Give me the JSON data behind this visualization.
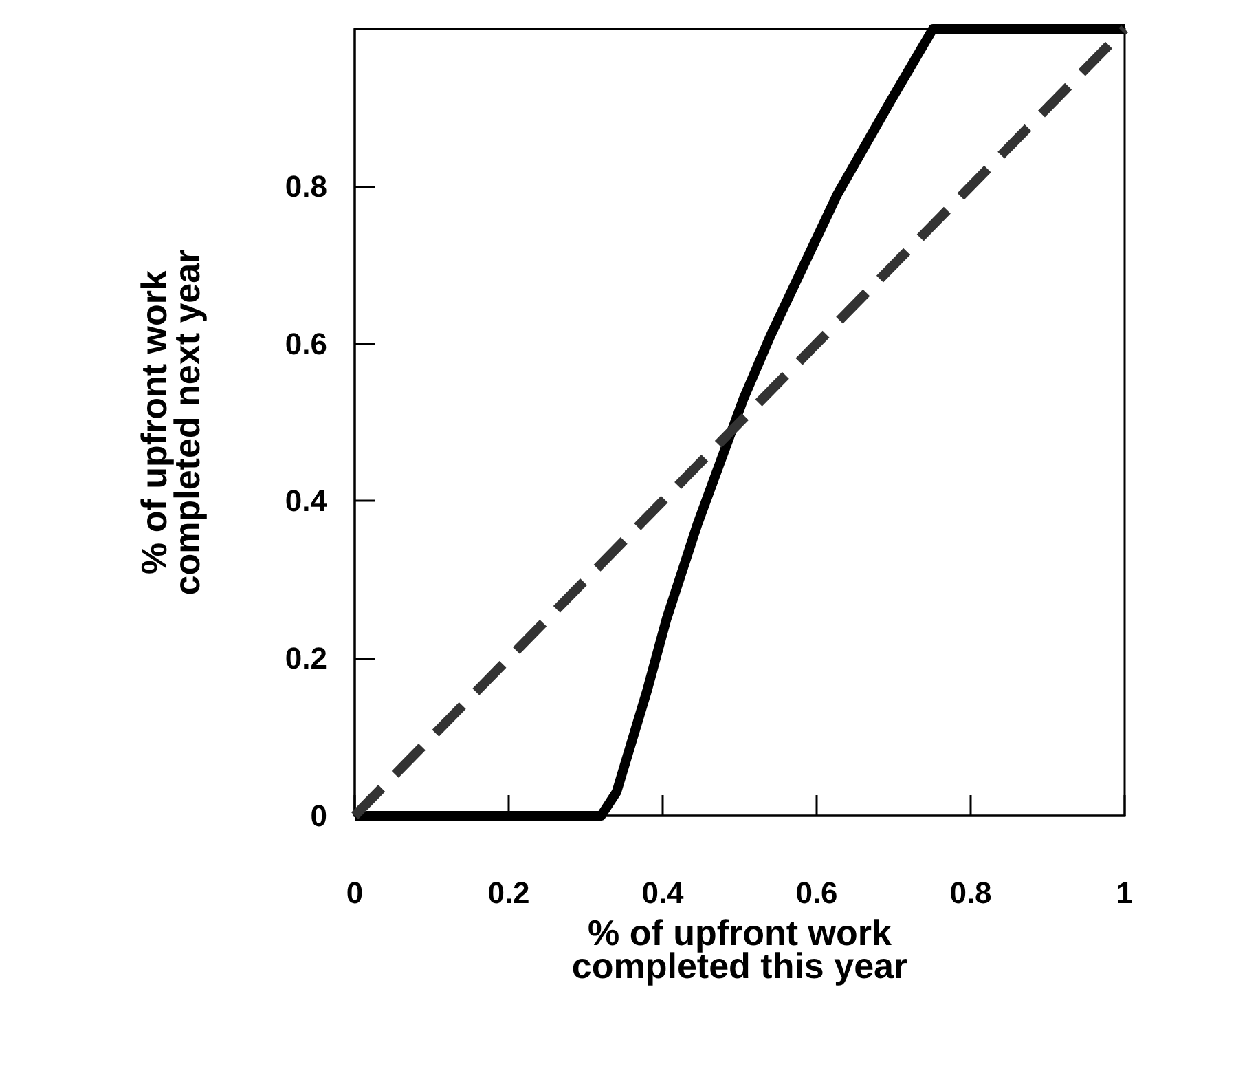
{
  "chart_data": {
    "type": "line",
    "xlabel": "% of upfront work\ncompleted this year",
    "ylabel": "% of upfront work\ncompleted next year",
    "xlim": [
      0,
      1
    ],
    "ylim": [
      0,
      1
    ],
    "xticks": [
      0,
      0.2,
      0.4,
      0.6,
      0.8,
      1
    ],
    "yticks": [
      0,
      0.2,
      0.4,
      0.6,
      0.8,
      {
        "value": 1,
        "label": null
      }
    ],
    "grid": false,
    "marker": "none",
    "series": [
      {
        "color": "#000000",
        "line_style": "solid",
        "x": [
          0,
          0.32,
          0.34,
          0.38,
          0.405,
          0.445,
          0.505,
          0.54,
          0.627,
          0.697,
          0.751,
          1
        ],
        "values": [
          0,
          0,
          0.03,
          0.16,
          0.25,
          0.37,
          0.53,
          0.61,
          0.79,
          0.91,
          1,
          1
        ]
      },
      {
        "color": "#333333",
        "line_style": "dashed",
        "x": [
          0,
          1
        ],
        "values": [
          0,
          1
        ]
      }
    ]
  }
}
